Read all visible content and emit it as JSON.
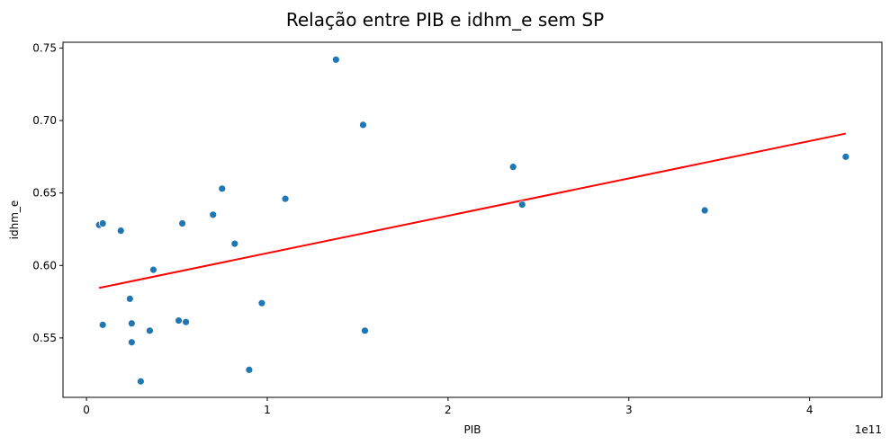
{
  "chart_data": {
    "type": "scatter",
    "title": "Relação entre PIB e idhm_e sem SP",
    "xlabel": "PIB",
    "ylabel": "idhm_e",
    "x_offset_text": "1e11",
    "xlim": [
      -0.13,
      4.4
    ],
    "ylim": [
      0.509,
      0.754
    ],
    "x_ticks": [
      0,
      1,
      2,
      3,
      4
    ],
    "x_tick_labels": [
      "0",
      "1",
      "2",
      "3",
      "4"
    ],
    "y_ticks": [
      0.55,
      0.6,
      0.65,
      0.7,
      0.75
    ],
    "y_tick_labels": [
      "0.55",
      "0.60",
      "0.65",
      "0.70",
      "0.75"
    ],
    "grid": false,
    "point_color": "#1f77b4",
    "trend_color": "#ff0000",
    "points": [
      {
        "x": 0.07,
        "y": 0.628
      },
      {
        "x": 0.09,
        "y": 0.629
      },
      {
        "x": 0.09,
        "y": 0.559
      },
      {
        "x": 0.19,
        "y": 0.624
      },
      {
        "x": 0.24,
        "y": 0.577
      },
      {
        "x": 0.25,
        "y": 0.56
      },
      {
        "x": 0.25,
        "y": 0.547
      },
      {
        "x": 0.3,
        "y": 0.52
      },
      {
        "x": 0.35,
        "y": 0.555
      },
      {
        "x": 0.37,
        "y": 0.597
      },
      {
        "x": 0.51,
        "y": 0.562
      },
      {
        "x": 0.53,
        "y": 0.629
      },
      {
        "x": 0.55,
        "y": 0.561
      },
      {
        "x": 0.7,
        "y": 0.635
      },
      {
        "x": 0.75,
        "y": 0.653
      },
      {
        "x": 0.82,
        "y": 0.615
      },
      {
        "x": 0.9,
        "y": 0.528
      },
      {
        "x": 0.97,
        "y": 0.574
      },
      {
        "x": 1.1,
        "y": 0.646
      },
      {
        "x": 1.38,
        "y": 0.742
      },
      {
        "x": 1.53,
        "y": 0.697
      },
      {
        "x": 1.54,
        "y": 0.555
      },
      {
        "x": 2.36,
        "y": 0.668
      },
      {
        "x": 2.41,
        "y": 0.642
      },
      {
        "x": 3.42,
        "y": 0.638
      },
      {
        "x": 4.2,
        "y": 0.675
      }
    ],
    "trend_line": {
      "x": [
        0.07,
        4.2
      ],
      "y": [
        0.5845,
        0.691
      ]
    }
  }
}
